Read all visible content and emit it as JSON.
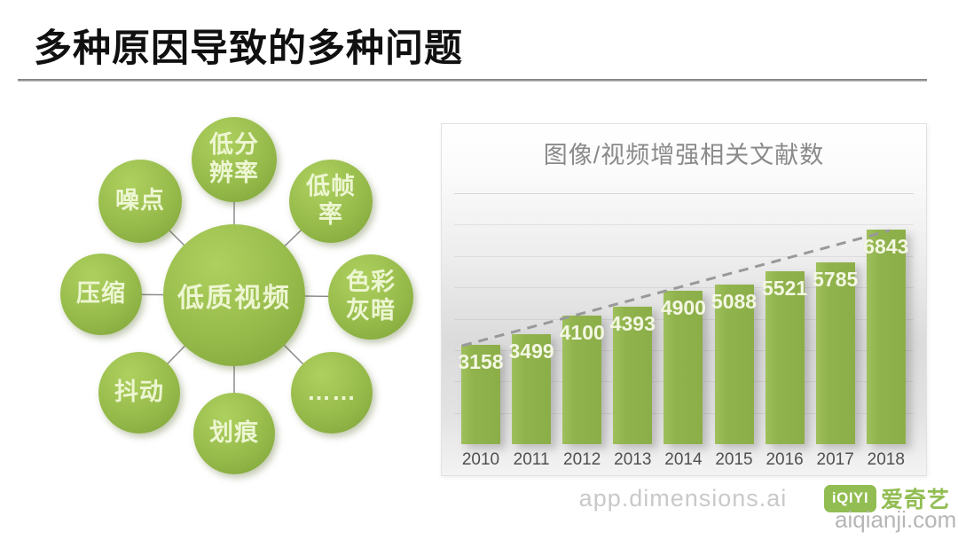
{
  "slide": {
    "title": "多种原因导致的多种问题"
  },
  "diagram": {
    "center": {
      "label": "低质视频"
    },
    "satellites": [
      {
        "label": "低分辨率",
        "lines": [
          "低分",
          "辨率"
        ]
      },
      {
        "label": "低帧率",
        "lines": [
          "低帧",
          "率"
        ]
      },
      {
        "label": "色彩灰暗",
        "lines": [
          "色彩",
          "灰暗"
        ]
      },
      {
        "label": "……",
        "lines": [
          "……"
        ]
      },
      {
        "label": "划痕",
        "lines": [
          "划痕"
        ]
      },
      {
        "label": "抖动",
        "lines": [
          "抖动"
        ]
      },
      {
        "label": "压缩",
        "lines": [
          "压缩"
        ]
      },
      {
        "label": "噪点",
        "lines": [
          "噪点"
        ]
      }
    ],
    "bubble_color": "#8fb344",
    "bubble_text_color": "#edf6d2"
  },
  "chart_data": {
    "type": "bar",
    "title": "图像/视频增强相关文献数",
    "categories": [
      "2010",
      "2011",
      "2012",
      "2013",
      "2014",
      "2015",
      "2016",
      "2017",
      "2018"
    ],
    "values": [
      3158,
      3499,
      4100,
      4393,
      4900,
      5088,
      5521,
      5785,
      6843
    ],
    "xlabel": "",
    "ylabel": "",
    "ylim": [
      0,
      8000
    ],
    "gridline_step": 1000,
    "grid": true,
    "legend": false,
    "trendline": "dashed",
    "trendline_color": "#97999b",
    "bar_color": "#90b24c",
    "value_label_color": "#f3f7e3",
    "tick_label_color": "#4f4f4f",
    "title_color": "#8a8a8a"
  },
  "footer": {
    "source": "app.dimensions.ai",
    "brand": {
      "badge": "iQIYI",
      "name": "爱奇艺",
      "color": "#92bd52"
    },
    "watermark": "aiqianji.com"
  }
}
